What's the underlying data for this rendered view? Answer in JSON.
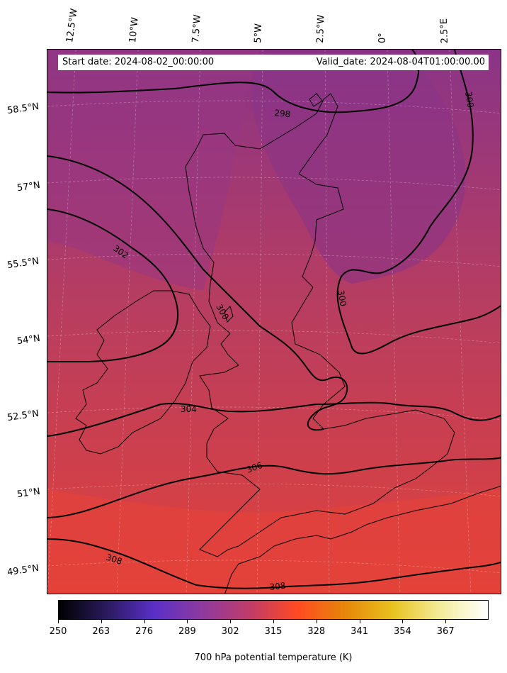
{
  "header": {
    "start_date": "Start date: 2024-08-02_00:00:00",
    "valid_date": "Valid_date: 2024-08-04T01:00:00.00"
  },
  "axes": {
    "longitude_labels": [
      "12.5°W",
      "10°W",
      "7.5°W",
      "5°W",
      "2.5°W",
      "0°",
      "2.5°E"
    ],
    "latitude_labels": [
      "58.5°N",
      "57°N",
      "55.5°N",
      "54°N",
      "52.5°N",
      "51°N",
      "49.5°N"
    ]
  },
  "contours": {
    "labels": [
      "298",
      "300",
      "300",
      "300",
      "302",
      "304",
      "306",
      "308",
      "308"
    ]
  },
  "colorbar": {
    "ticks": [
      "250",
      "263",
      "276",
      "289",
      "302",
      "315",
      "328",
      "341",
      "354",
      "367"
    ],
    "label": "700 hPa potential temperature (K)",
    "range": [
      250,
      380
    ],
    "colormap": "CMRmap",
    "stops": [
      "#000000",
      "#2a1a5e",
      "#5a2fc7",
      "#8e3aa0",
      "#c03c6a",
      "#ff4a22",
      "#e6860a",
      "#e8c21e",
      "#f3ec9a",
      "#ffffff"
    ]
  },
  "map": {
    "field_colors": {
      "north": "#8a3487",
      "mid": "#b63d62",
      "south": "#e1413a"
    }
  }
}
